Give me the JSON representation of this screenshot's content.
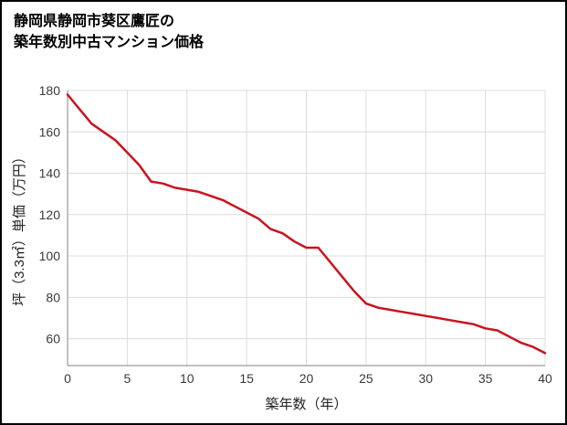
{
  "title": {
    "line1": "静岡県静岡市葵区鷹匠の",
    "line2": "築年数別中古マンション価格"
  },
  "chart_data": {
    "type": "line",
    "title": "静岡県静岡市葵区鷹匠の築年数別中古マンション価格",
    "xlabel": "築年数（年）",
    "ylabel": "坪（3.3㎡）単価（万円）",
    "xlim": [
      0,
      40
    ],
    "ylim": [
      47,
      180
    ],
    "xticks": [
      0,
      5,
      10,
      15,
      20,
      25,
      30,
      35,
      40
    ],
    "yticks": [
      60,
      80,
      100,
      120,
      140,
      160,
      180
    ],
    "grid": true,
    "legend": false,
    "x": [
      0,
      1,
      2,
      3,
      4,
      5,
      6,
      7,
      8,
      9,
      10,
      11,
      12,
      13,
      14,
      15,
      16,
      17,
      18,
      19,
      20,
      21,
      22,
      23,
      24,
      25,
      26,
      27,
      28,
      29,
      30,
      31,
      32,
      33,
      34,
      35,
      36,
      37,
      38,
      39,
      40
    ],
    "series": [
      {
        "name": "坪単価（万円）",
        "values": [
          178,
          171,
          164,
          160,
          156,
          150,
          144,
          136,
          135,
          133,
          132,
          131,
          129,
          127,
          124,
          121,
          118,
          113,
          111,
          107,
          104,
          104,
          97,
          90,
          83,
          77,
          75,
          74,
          73,
          72,
          71,
          70,
          69,
          68,
          67,
          65,
          64,
          61,
          58,
          56,
          53
        ],
        "color": "#c9141f"
      }
    ],
    "colors": {
      "line": "#c9141f",
      "grid": "#dcdcdc",
      "axis": "#9a9a9a",
      "tick_label": "#3a3a3a",
      "background": "#ffffff",
      "border": "#000000"
    }
  }
}
